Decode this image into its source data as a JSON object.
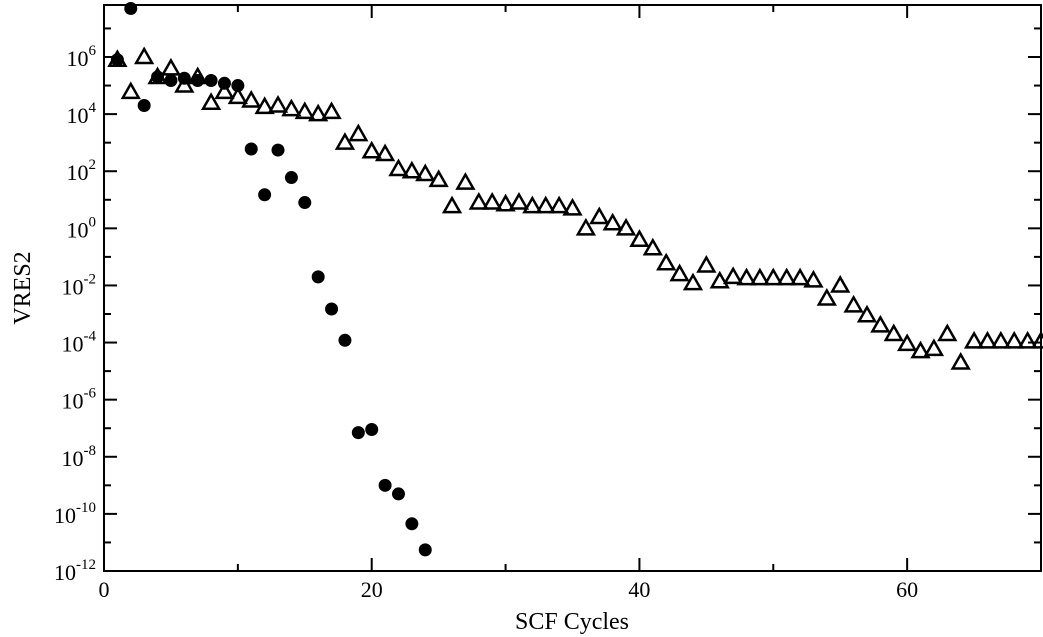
{
  "chart_data": {
    "type": "scatter",
    "title": "",
    "xlabel": "SCF Cycles",
    "ylabel": "VRES2",
    "xlim": [
      0,
      70
    ],
    "ylim": [
      1e-12,
      100000000.0
    ],
    "y_scale": "log",
    "grid": false,
    "legend": "none",
    "x_ticks": [
      "0",
      "20",
      "40",
      "60"
    ],
    "x_tick_values": [
      0,
      20,
      40,
      60
    ],
    "y_ticks": [
      {
        "base": "10",
        "exp": "-12",
        "value": 1e-12
      },
      {
        "base": "10",
        "exp": "-10",
        "value": 1e-10
      },
      {
        "base": "10",
        "exp": "-8",
        "value": 1e-08
      },
      {
        "base": "10",
        "exp": "-6",
        "value": 1e-06
      },
      {
        "base": "10",
        "exp": "-4",
        "value": 0.0001
      },
      {
        "base": "10",
        "exp": "-2",
        "value": 0.01
      },
      {
        "base": "10",
        "exp": "0",
        "value": 1
      },
      {
        "base": "10",
        "exp": "2",
        "value": 100
      },
      {
        "base": "10",
        "exp": "4",
        "value": 10000.0
      },
      {
        "base": "10",
        "exp": "6",
        "value": 1000000.0
      }
    ],
    "series": [
      {
        "marker": "filled-circle",
        "color": "#000000",
        "x": [
          1,
          2,
          3,
          4,
          5,
          6,
          7,
          8,
          9,
          10,
          11,
          12,
          13,
          14,
          15,
          16,
          17,
          18,
          19,
          20,
          21,
          22,
          23,
          24
        ],
        "y": [
          800000,
          50000000,
          20000,
          200000,
          150000,
          180000,
          150000,
          150000,
          120000,
          100000,
          600,
          15,
          550,
          60,
          8,
          0.02,
          0.0015,
          0.00012,
          7e-08,
          9e-08,
          1e-09,
          5e-10,
          4.5e-11,
          5.5e-12
        ]
      },
      {
        "marker": "open-triangle",
        "color": "#000000",
        "x": [
          1,
          2,
          3,
          4,
          5,
          6,
          7,
          8,
          9,
          10,
          11,
          12,
          13,
          14,
          15,
          16,
          17,
          18,
          19,
          20,
          21,
          22,
          23,
          24,
          25,
          26,
          27,
          28,
          29,
          30,
          31,
          32,
          33,
          34,
          35,
          36,
          37,
          38,
          39,
          40,
          41,
          42,
          43,
          44,
          45,
          46,
          47,
          48,
          49,
          50,
          51,
          52,
          53,
          54,
          55,
          56,
          57,
          58,
          59,
          60,
          61,
          62,
          63,
          64,
          65,
          66,
          67,
          68,
          69,
          70
        ],
        "y": [
          800000,
          60000,
          1000000,
          200000,
          400000,
          100000,
          200000,
          25000,
          60000,
          40000,
          30000,
          18000,
          20000,
          15000,
          12000,
          10000,
          12000,
          1000,
          2000,
          500,
          400,
          120,
          100,
          80,
          50,
          6,
          40,
          8,
          8,
          7,
          8,
          6,
          6,
          6,
          5,
          1,
          2.5,
          1.5,
          1,
          0.4,
          0.2,
          0.06,
          0.025,
          0.012,
          0.05,
          0.014,
          0.02,
          0.018,
          0.018,
          0.018,
          0.018,
          0.018,
          0.015,
          0.0035,
          0.01,
          0.002,
          0.0009,
          0.0004,
          0.0002,
          9e-05,
          5e-05,
          6e-05,
          0.0002,
          2e-05,
          0.00011,
          0.00011,
          0.00011,
          0.00011,
          0.00011,
          0.00011
        ]
      }
    ]
  }
}
